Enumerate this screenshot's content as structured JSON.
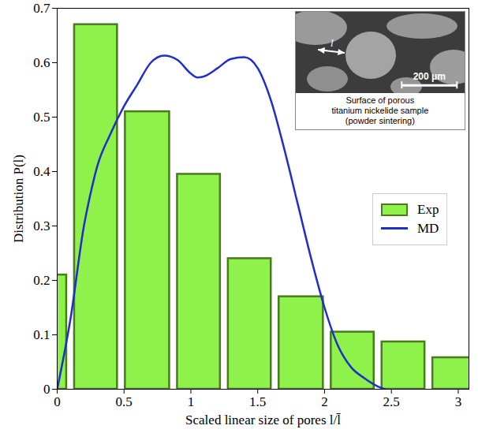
{
  "chart_data": {
    "type": "histogram",
    "xlabel": "Scaled linear size of pores l/l̄",
    "ylabel": "Distribution P(l)",
    "xlim": [
      0,
      3.08
    ],
    "ylim": [
      0,
      0.7
    ],
    "xticks": [
      0,
      0.5,
      1,
      1.5,
      2,
      2.5,
      3
    ],
    "yticks": [
      0,
      0.1,
      0.2,
      0.3,
      0.4,
      0.5,
      0.6,
      0.7
    ],
    "legend": "right",
    "series": [
      {
        "name": "Exp",
        "type": "bar",
        "color": "#8ef24a",
        "bins": [
          -0.28,
          0.1,
          0.48,
          0.87,
          1.25,
          1.63,
          2.02,
          2.4,
          2.78,
          3.17
        ],
        "values": [
          0.21,
          0.67,
          0.51,
          0.395,
          0.24,
          0.17,
          0.105,
          0.087,
          0.058
        ]
      },
      {
        "name": "MD",
        "type": "line",
        "color": "#1f2ecc",
        "x": [
          0,
          0.1,
          0.2,
          0.25,
          0.3,
          0.4,
          0.5,
          0.6,
          0.7,
          0.8,
          0.9,
          1.0,
          1.05,
          1.1,
          1.2,
          1.3,
          1.4,
          1.5,
          1.6,
          1.7,
          1.8,
          1.9,
          2.0,
          2.1,
          2.2,
          2.3,
          2.4,
          2.45
        ],
        "values": [
          0,
          0.13,
          0.3,
          0.36,
          0.41,
          0.47,
          0.52,
          0.56,
          0.6,
          0.613,
          0.605,
          0.58,
          0.573,
          0.575,
          0.59,
          0.607,
          0.61,
          0.59,
          0.53,
          0.44,
          0.34,
          0.24,
          0.15,
          0.08,
          0.04,
          0.02,
          0.005,
          0
        ]
      }
    ],
    "inset_caption": [
      "Surface of porous",
      "titanium nickelide sample",
      "(powder sintering)"
    ],
    "inset_scale_bar": "200 μm",
    "inset_size_label": "l"
  }
}
